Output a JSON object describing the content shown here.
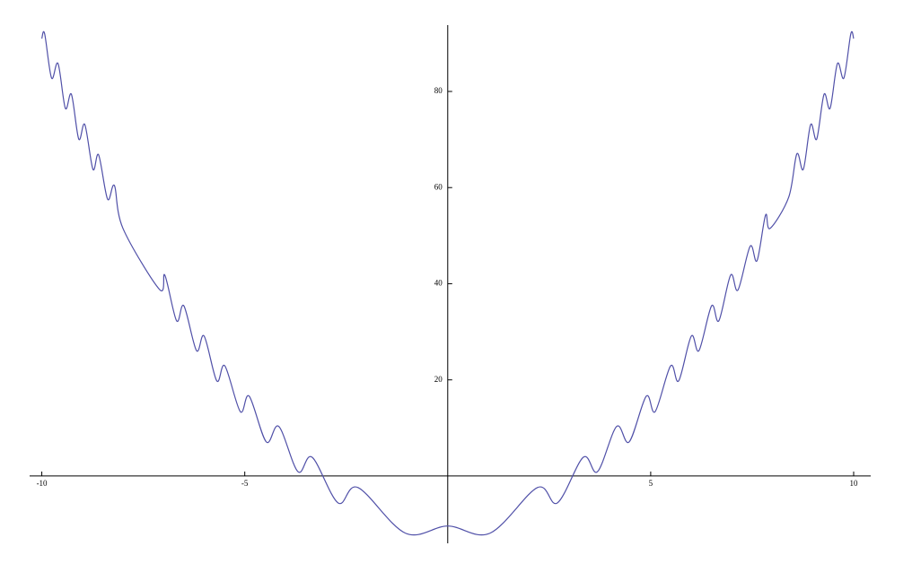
{
  "chart_data": {
    "type": "line",
    "x": [
      -10,
      -9.93,
      -9.76,
      -9.6,
      -9.42,
      -9.27,
      -9.09,
      -8.94,
      -8.74,
      -8.6,
      -8.38,
      -8.21,
      -8.0,
      -7.1,
      -6.97,
      -6.68,
      -6.5,
      -6.19,
      -6.0,
      -5.69,
      -5.49,
      -5.11,
      -4.89,
      -4.47,
      -4.16,
      -3.69,
      -3.34,
      -2.7,
      -2.21,
      -1.04,
      0,
      1.04,
      2.21,
      2.7,
      3.34,
      3.69,
      4.16,
      4.47,
      4.89,
      5.11,
      5.49,
      5.69,
      6.0,
      6.19,
      6.5,
      6.68,
      6.97,
      7.15,
      7.45,
      7.62,
      7.83,
      7.94,
      8.4,
      8.6,
      8.76,
      8.94,
      9.09,
      9.27,
      9.42,
      9.6,
      9.76,
      9.93,
      10
    ],
    "series": [
      {
        "color": "#5050a8",
        "values": [
          91,
          92,
          82.8,
          85.8,
          76.5,
          79.4,
          70.1,
          73.1,
          63.8,
          66.8,
          57.6,
          60.4,
          51.5,
          38.8,
          41.8,
          32.3,
          35.4,
          26.1,
          29.1,
          19.8,
          22.9,
          13.4,
          16.6,
          7.1,
          10.3,
          0.9,
          3.9,
          -5.6,
          -2.4,
          -11.9,
          -10.4,
          -11.9,
          -2.4,
          -5.6,
          3.9,
          0.9,
          10.3,
          7.1,
          16.6,
          13.4,
          22.9,
          19.8,
          29.1,
          26.1,
          35.4,
          32.3,
          41.8,
          38.7,
          47.8,
          44.8,
          54.3,
          51.5,
          58,
          67,
          63.8,
          73.1,
          70.1,
          79.4,
          76.5,
          85.8,
          82.8,
          92,
          91
        ]
      }
    ],
    "xlim": [
      -10.3,
      10.42
    ],
    "ylim": [
      -14,
      93.8
    ],
    "xticks": [
      {
        "value": -10,
        "label": "-10"
      },
      {
        "value": -5,
        "label": "-5"
      },
      5,
      10
    ],
    "yticks": [
      20,
      40,
      60,
      80
    ]
  }
}
